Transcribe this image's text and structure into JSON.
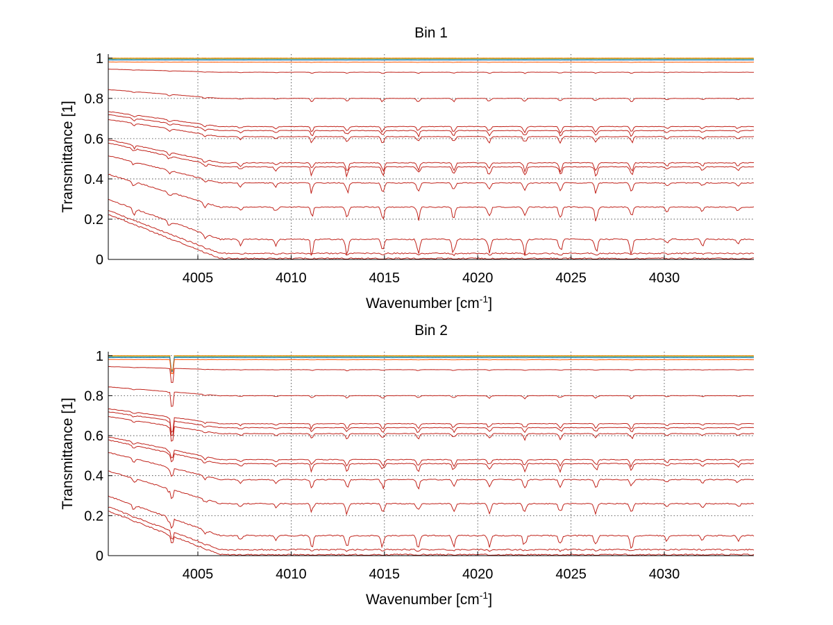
{
  "chart_data": [
    {
      "type": "line",
      "title": "Bin 1",
      "xlabel": "Wavenumber [cm",
      "xlabel_sup": "-1",
      "xlabel_end": "]",
      "ylabel": "Transmittance [1]",
      "xlim": [
        4000.2,
        4034.8
      ],
      "ylim": [
        0,
        1.02
      ],
      "xticks": [
        4005,
        4010,
        4015,
        4020,
        4025,
        4030
      ],
      "yticks": [
        0,
        0.2,
        0.4,
        0.6,
        0.8,
        1
      ],
      "ytick_labels": [
        "0",
        "0.2",
        "0.4",
        "0.6",
        "0.8",
        "1"
      ],
      "grid": true,
      "series_levels": [
        1.0,
        0.998,
        0.995,
        0.99,
        0.98,
        0.93,
        0.8,
        0.66,
        0.64,
        0.61,
        0.48,
        0.46,
        0.38,
        0.26,
        0.1,
        0.03,
        0.005
      ],
      "feature_depth": 0.35,
      "spike_at": null
    },
    {
      "type": "line",
      "title": "Bin 2",
      "xlabel": "Wavenumber [cm",
      "xlabel_sup": "-1",
      "xlabel_end": "]",
      "ylabel": "Transmittance [1]",
      "xlim": [
        4000.2,
        4034.8
      ],
      "ylim": [
        0,
        1.02
      ],
      "xticks": [
        4005,
        4010,
        4015,
        4020,
        4025,
        4030
      ],
      "yticks": [
        0,
        0.2,
        0.4,
        0.6,
        0.8,
        1
      ],
      "ytick_labels": [
        "0",
        "0.2",
        "0.4",
        "0.6",
        "0.8",
        "1"
      ],
      "grid": true,
      "series_levels": [
        1.0,
        0.998,
        0.995,
        0.99,
        0.98,
        0.93,
        0.8,
        0.66,
        0.64,
        0.61,
        0.48,
        0.46,
        0.38,
        0.26,
        0.1,
        0.03,
        0.005
      ],
      "feature_depth": 0.3,
      "spike_at": 4003.6
    }
  ],
  "colors": {
    "main_line": "#c0221a",
    "top_lines": [
      "#ff7f00",
      "#e8a000",
      "#2a9d8f",
      "#1f77b4",
      "#ff5500"
    ],
    "axis": "#000000",
    "grid": "#333333"
  }
}
